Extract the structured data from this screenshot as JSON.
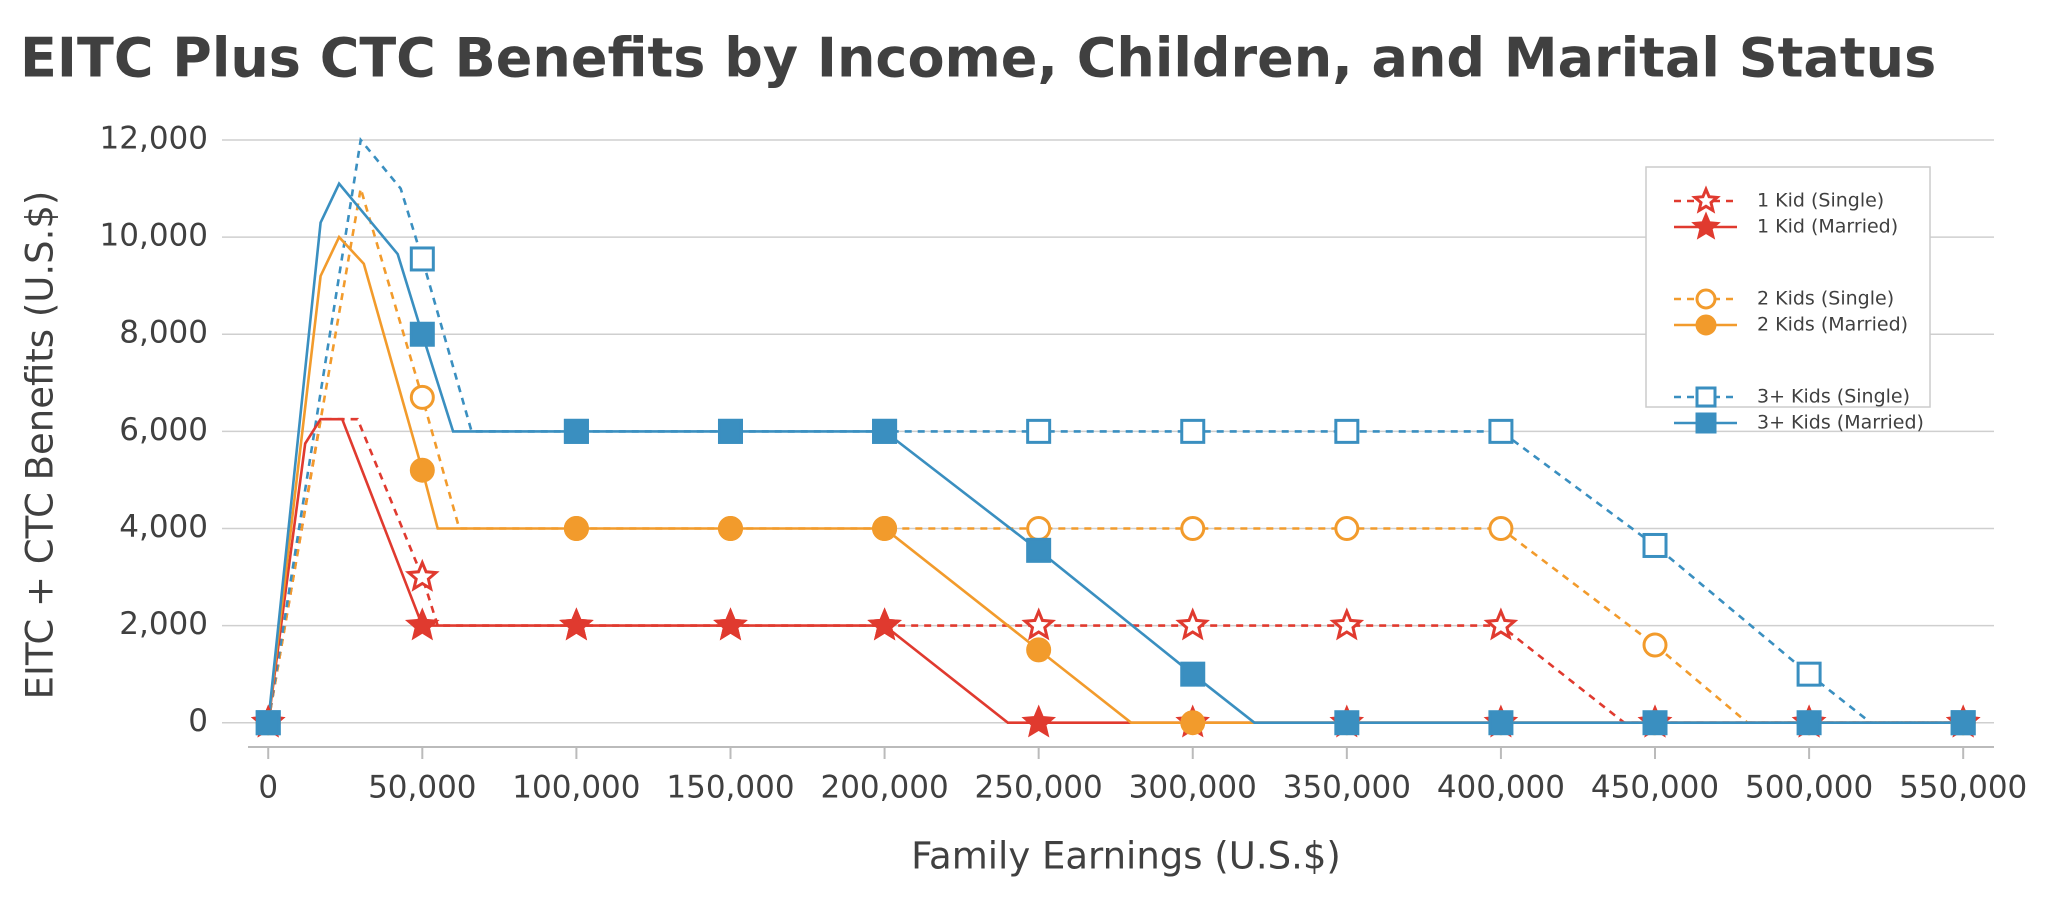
{
  "chart_data": {
    "type": "line",
    "title": "EITC Plus CTC Benefits by Income, Children, and Marital Status",
    "x_label": "Family Earnings (U.S.$)",
    "y_label": "EITC + CTC Benefits (U.S.$)",
    "xlim": [
      -15000,
      560000
    ],
    "ylim": [
      -500,
      12000
    ],
    "xticks": [
      0,
      {
        "value": 50000,
        "label": "50,000"
      },
      {
        "value": 100000,
        "label": "100,000"
      },
      {
        "value": 150000,
        "label": "150,000"
      },
      {
        "value": 200000,
        "label": "200,000"
      },
      {
        "value": 250000,
        "label": "250,000"
      },
      {
        "value": 300000,
        "label": "300,000"
      },
      {
        "value": 350000,
        "label": "350,000"
      },
      {
        "value": 400000,
        "label": "400,000"
      },
      {
        "value": 450000,
        "label": "450,000"
      },
      {
        "value": 500000,
        "label": "500,000"
      },
      {
        "value": 550000,
        "label": "550,000"
      }
    ],
    "yticks": [
      0,
      {
        "value": 2000,
        "label": "2,000"
      },
      {
        "value": 4000,
        "label": "4,000"
      },
      {
        "value": 6000,
        "label": "6,000"
      },
      {
        "value": 8000,
        "label": "8,000"
      },
      {
        "value": 10000,
        "label": "10,000"
      },
      {
        "value": 12000,
        "label": "12,000"
      }
    ],
    "grid": true,
    "legend": "upper right",
    "series": [
      {
        "name": "1 Kid (Single)",
        "color": "#e03a2f",
        "dashed": true,
        "marker": "star",
        "filled": false,
        "x": [
          0,
          17000,
          29000,
          50000,
          55000,
          100000,
          150000,
          200000,
          250000,
          300000,
          350000,
          400000,
          440000,
          450000,
          500000,
          550000
        ],
        "values": [
          0,
          6250,
          6250,
          3000,
          2000,
          2000,
          2000,
          2000,
          2000,
          2000,
          2000,
          2000,
          0,
          0,
          0,
          0
        ]
      },
      {
        "name": "1 Kid (Married)",
        "color": "#e03a2f",
        "dashed": false,
        "marker": "star",
        "filled": true,
        "x": [
          0,
          12000,
          17000,
          24000,
          50000,
          100000,
          150000,
          200000,
          240000,
          250000,
          300000,
          350000,
          400000,
          450000,
          500000,
          550000
        ],
        "values": [
          0,
          5750,
          6250,
          6250,
          2000,
          2000,
          2000,
          2000,
          0,
          0,
          0,
          0,
          0,
          0,
          0,
          0
        ]
      },
      {
        "name": "2 Kids (Single)",
        "color": "#f29b2c",
        "dashed": true,
        "marker": "circle",
        "filled": false,
        "x": [
          0,
          30000,
          50000,
          62000,
          100000,
          150000,
          200000,
          250000,
          300000,
          350000,
          400000,
          450000,
          480000,
          500000,
          550000
        ],
        "values": [
          0,
          11000,
          6700,
          4000,
          4000,
          4000,
          4000,
          4000,
          4000,
          4000,
          4000,
          1600,
          0,
          0,
          0
        ]
      },
      {
        "name": "2 Kids (Married)",
        "color": "#f29b2c",
        "dashed": false,
        "marker": "circle",
        "filled": true,
        "x": [
          0,
          17000,
          23000,
          31000,
          50000,
          55000,
          100000,
          150000,
          200000,
          250000,
          280000,
          300000,
          350000,
          400000,
          450000,
          500000,
          550000
        ],
        "values": [
          0,
          9200,
          10000,
          9450,
          5200,
          4000,
          4000,
          4000,
          4000,
          1500,
          0,
          0,
          0,
          0,
          0,
          0,
          0
        ]
      },
      {
        "name": "3+ Kids (Single)",
        "color": "#3a8fc0",
        "dashed": true,
        "marker": "square",
        "filled": false,
        "x": [
          0,
          30000,
          43000,
          50000,
          66000,
          100000,
          150000,
          200000,
          250000,
          300000,
          350000,
          400000,
          450000,
          500000,
          520000,
          550000
        ],
        "values": [
          0,
          12000,
          11000,
          9550,
          6000,
          6000,
          6000,
          6000,
          6000,
          6000,
          6000,
          6000,
          3650,
          1000,
          0,
          0
        ]
      },
      {
        "name": "3+ Kids (Married)",
        "color": "#3a8fc0",
        "dashed": false,
        "marker": "square",
        "filled": true,
        "x": [
          0,
          17000,
          23000,
          42000,
          50000,
          60000,
          100000,
          150000,
          200000,
          250000,
          300000,
          320000,
          350000,
          400000,
          450000,
          500000,
          550000
        ],
        "values": [
          0,
          10300,
          11100,
          9650,
          8000,
          6000,
          6000,
          6000,
          6000,
          3550,
          1000,
          0,
          0,
          0,
          0,
          0,
          0
        ]
      }
    ]
  }
}
